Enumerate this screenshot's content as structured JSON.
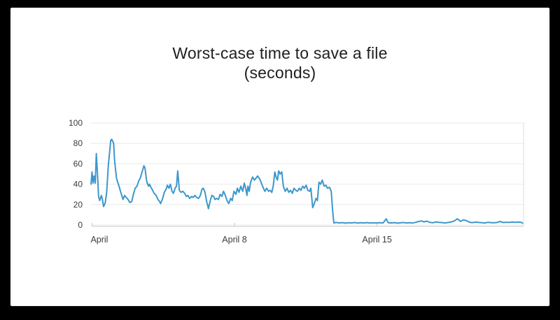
{
  "page": {
    "background": "#000000"
  },
  "card": {
    "background": "#ffffff"
  },
  "title": {
    "line1": "Worst-case time to save a file",
    "line2": "(seconds)",
    "color": "#1f1f1f"
  },
  "chart_data": {
    "type": "line",
    "title": "Worst-case time to save a file (seconds)",
    "xlabel": "",
    "ylabel": "",
    "legend": "none",
    "colors": {
      "line": "#3d97cc",
      "grid": "#e9e9e9",
      "axis": "#c9c9c9",
      "right_border": "#dddddd",
      "tick_label": "#3b3b3b"
    },
    "grid": {
      "horizontal": true,
      "vertical": false
    },
    "y_axis": {
      "range": [
        0,
        100
      ],
      "ticks": [
        0,
        20,
        40,
        60,
        80,
        100
      ]
    },
    "x_axis": {
      "unit": "days since April 1",
      "range_days": [
        -0.05,
        21.2
      ],
      "ticks": [
        {
          "day": 0,
          "label": "April",
          "anchor": "start"
        },
        {
          "day": 7,
          "label": "April 8",
          "anchor": "middle"
        },
        {
          "day": 14,
          "label": "April 15",
          "anchor": "middle"
        }
      ]
    },
    "series": [
      {
        "name": "worst-case save time (seconds)",
        "points": [
          [
            -0.05,
            40
          ],
          [
            0.0,
            52
          ],
          [
            0.05,
            41
          ],
          [
            0.1,
            48
          ],
          [
            0.16,
            41
          ],
          [
            0.21,
            70
          ],
          [
            0.27,
            50
          ],
          [
            0.32,
            28
          ],
          [
            0.38,
            24
          ],
          [
            0.46,
            29
          ],
          [
            0.51,
            25
          ],
          [
            0.57,
            18
          ],
          [
            0.65,
            22
          ],
          [
            0.72,
            32
          ],
          [
            0.8,
            58
          ],
          [
            0.92,
            83
          ],
          [
            0.97,
            84
          ],
          [
            1.06,
            80
          ],
          [
            1.11,
            63
          ],
          [
            1.2,
            46
          ],
          [
            1.26,
            42
          ],
          [
            1.31,
            39
          ],
          [
            1.43,
            31
          ],
          [
            1.52,
            25
          ],
          [
            1.6,
            29
          ],
          [
            1.68,
            27
          ],
          [
            1.77,
            25
          ],
          [
            1.86,
            22
          ],
          [
            1.95,
            23
          ],
          [
            2.02,
            29
          ],
          [
            2.12,
            36
          ],
          [
            2.21,
            38
          ],
          [
            2.29,
            43
          ],
          [
            2.37,
            46
          ],
          [
            2.46,
            52
          ],
          [
            2.55,
            58
          ],
          [
            2.6,
            56
          ],
          [
            2.67,
            45
          ],
          [
            2.71,
            41
          ],
          [
            2.78,
            38
          ],
          [
            2.82,
            40
          ],
          [
            2.89,
            37
          ],
          [
            2.98,
            34
          ],
          [
            3.05,
            31
          ],
          [
            3.15,
            29
          ],
          [
            3.24,
            25
          ],
          [
            3.32,
            23
          ],
          [
            3.37,
            21
          ],
          [
            3.47,
            26
          ],
          [
            3.55,
            32
          ],
          [
            3.64,
            35
          ],
          [
            3.7,
            39
          ],
          [
            3.78,
            36
          ],
          [
            3.85,
            40
          ],
          [
            3.93,
            33
          ],
          [
            4.0,
            31
          ],
          [
            4.08,
            36
          ],
          [
            4.15,
            38
          ],
          [
            4.21,
            53
          ],
          [
            4.29,
            34
          ],
          [
            4.37,
            32
          ],
          [
            4.46,
            33
          ],
          [
            4.55,
            31
          ],
          [
            4.63,
            28
          ],
          [
            4.71,
            29
          ],
          [
            4.8,
            26
          ],
          [
            4.89,
            28
          ],
          [
            4.97,
            27
          ],
          [
            5.06,
            29
          ],
          [
            5.14,
            27
          ],
          [
            5.23,
            26
          ],
          [
            5.32,
            29
          ],
          [
            5.4,
            35
          ],
          [
            5.47,
            36
          ],
          [
            5.55,
            32
          ],
          [
            5.63,
            23
          ],
          [
            5.72,
            16
          ],
          [
            5.81,
            24
          ],
          [
            5.89,
            29
          ],
          [
            5.97,
            28
          ],
          [
            6.04,
            25
          ],
          [
            6.12,
            26
          ],
          [
            6.21,
            25
          ],
          [
            6.29,
            30
          ],
          [
            6.38,
            28
          ],
          [
            6.46,
            33
          ],
          [
            6.55,
            29
          ],
          [
            6.63,
            24
          ],
          [
            6.72,
            21
          ],
          [
            6.81,
            26
          ],
          [
            6.89,
            24
          ],
          [
            6.97,
            33
          ],
          [
            7.07,
            30
          ],
          [
            7.14,
            36
          ],
          [
            7.22,
            32
          ],
          [
            7.31,
            38
          ],
          [
            7.4,
            33
          ],
          [
            7.48,
            41
          ],
          [
            7.56,
            35
          ],
          [
            7.61,
            29
          ],
          [
            7.66,
            38
          ],
          [
            7.72,
            33
          ],
          [
            7.79,
            42
          ],
          [
            7.89,
            47
          ],
          [
            7.98,
            44
          ],
          [
            8.06,
            46
          ],
          [
            8.13,
            48
          ],
          [
            8.24,
            45
          ],
          [
            8.32,
            41
          ],
          [
            8.4,
            37
          ],
          [
            8.49,
            33
          ],
          [
            8.58,
            36
          ],
          [
            8.67,
            33
          ],
          [
            8.75,
            34
          ],
          [
            8.83,
            32
          ],
          [
            8.9,
            38
          ],
          [
            8.98,
            52
          ],
          [
            9.04,
            47
          ],
          [
            9.11,
            44
          ],
          [
            9.17,
            53
          ],
          [
            9.24,
            50
          ],
          [
            9.32,
            52
          ],
          [
            9.4,
            38
          ],
          [
            9.49,
            33
          ],
          [
            9.58,
            36
          ],
          [
            9.66,
            32
          ],
          [
            9.75,
            34
          ],
          [
            9.84,
            31
          ],
          [
            9.92,
            36
          ],
          [
            10.01,
            34
          ],
          [
            10.09,
            33
          ],
          [
            10.18,
            36
          ],
          [
            10.26,
            34
          ],
          [
            10.35,
            38
          ],
          [
            10.43,
            36
          ],
          [
            10.52,
            39
          ],
          [
            10.6,
            34
          ],
          [
            10.69,
            33
          ],
          [
            10.75,
            36
          ],
          [
            10.84,
            17
          ],
          [
            10.92,
            21
          ],
          [
            11.0,
            26
          ],
          [
            11.07,
            24
          ],
          [
            11.15,
            42
          ],
          [
            11.23,
            40
          ],
          [
            11.31,
            44
          ],
          [
            11.4,
            38
          ],
          [
            11.49,
            39
          ],
          [
            11.57,
            36
          ],
          [
            11.66,
            37
          ],
          [
            11.75,
            33
          ],
          [
            11.81,
            17
          ],
          [
            11.85,
            7
          ],
          [
            11.88,
            2
          ],
          [
            12.0,
            2.5
          ],
          [
            12.15,
            2
          ],
          [
            12.3,
            2.3
          ],
          [
            12.45,
            1.8
          ],
          [
            12.6,
            2.2
          ],
          [
            12.75,
            2
          ],
          [
            12.9,
            2.4
          ],
          [
            13.05,
            1.9
          ],
          [
            13.2,
            2.2
          ],
          [
            13.35,
            2
          ],
          [
            13.5,
            2.3
          ],
          [
            13.65,
            1.9
          ],
          [
            13.8,
            2.1
          ],
          [
            13.95,
            2
          ],
          [
            14.1,
            2.2
          ],
          [
            14.3,
            2
          ],
          [
            14.45,
            6
          ],
          [
            14.55,
            2.2
          ],
          [
            14.7,
            2
          ],
          [
            14.85,
            2.3
          ],
          [
            15.0,
            1.8
          ],
          [
            15.15,
            2.1
          ],
          [
            15.3,
            2.4
          ],
          [
            15.45,
            2
          ],
          [
            15.6,
            2.2
          ],
          [
            15.75,
            1.9
          ],
          [
            15.9,
            2.6
          ],
          [
            16.05,
            3.4
          ],
          [
            16.2,
            4
          ],
          [
            16.3,
            3
          ],
          [
            16.45,
            3.8
          ],
          [
            16.6,
            2.5
          ],
          [
            16.75,
            2.2
          ],
          [
            16.9,
            3
          ],
          [
            17.05,
            2.6
          ],
          [
            17.2,
            2.3
          ],
          [
            17.35,
            2
          ],
          [
            17.5,
            2.5
          ],
          [
            17.65,
            3
          ],
          [
            17.8,
            4
          ],
          [
            17.95,
            6
          ],
          [
            18.1,
            3.5
          ],
          [
            18.25,
            5
          ],
          [
            18.4,
            4.2
          ],
          [
            18.55,
            2.6
          ],
          [
            18.7,
            2.3
          ],
          [
            18.85,
            2.8
          ],
          [
            19.0,
            2.5
          ],
          [
            19.15,
            2.2
          ],
          [
            19.3,
            2
          ],
          [
            19.45,
            2.6
          ],
          [
            19.6,
            2.3
          ],
          [
            19.75,
            2.1
          ],
          [
            19.9,
            2.5
          ],
          [
            20.05,
            3.4
          ],
          [
            20.2,
            2.4
          ],
          [
            20.35,
            2.7
          ],
          [
            20.5,
            2.5
          ],
          [
            20.65,
            2.9
          ],
          [
            20.8,
            2.6
          ],
          [
            20.95,
            2.9
          ],
          [
            21.1,
            2.5
          ],
          [
            21.15,
            1.8
          ]
        ]
      }
    ]
  }
}
